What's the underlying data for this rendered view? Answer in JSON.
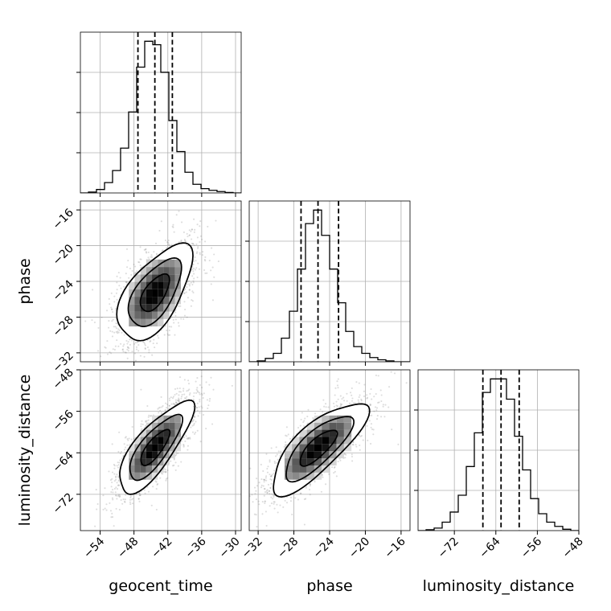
{
  "chart_data": {
    "type": "corner",
    "title": "",
    "parameters": [
      "geocent_time",
      "phase",
      "luminosity_distance"
    ],
    "axis_labels": {
      "geocent_time": "geocent_time",
      "phase": "phase",
      "luminosity_distance": "luminosity_distance"
    },
    "ranges": {
      "geocent_time": [
        -57.5,
        -29
      ],
      "phase": [
        -33,
        -15
      ],
      "luminosity_distance": [
        -79,
        -48
      ]
    },
    "ticks": {
      "geocent_time": {
        "values": [
          -54,
          -48,
          -42,
          -36,
          -30
        ],
        "labels": [
          "−54",
          "−48",
          "−42",
          "−36",
          "−30"
        ]
      },
      "phase": {
        "values": [
          -32,
          -28,
          -24,
          -20,
          -16
        ],
        "labels": [
          "−32",
          "−28",
          "−24",
          "−20",
          "−16"
        ]
      },
      "luminosity_distance": {
        "values": [
          -72,
          -64,
          -56,
          -48
        ],
        "labels": [
          "−72",
          "−64",
          "−56",
          "−48"
        ]
      }
    },
    "grid": true,
    "quantiles": {
      "geocent_time": [
        -47.3,
        -44.3,
        -41.2
      ],
      "phase": [
        -27.2,
        -25.3,
        -23.0
      ],
      "luminosity_distance": [
        -66.5,
        -63.0,
        -59.5
      ]
    },
    "marginals": {
      "geocent_time": {
        "edges": [
          -57.5,
          -56.07,
          -54.65,
          -53.22,
          -51.8,
          -50.38,
          -48.95,
          -47.53,
          -46.1,
          -44.67,
          -43.25,
          -41.82,
          -40.4,
          -38.97,
          -37.55,
          -36.12,
          -34.7,
          -33.28,
          -31.85,
          -30.43,
          -29.0
        ],
        "counts": [
          0.0,
          0.005,
          0.02,
          0.06,
          0.13,
          0.26,
          0.47,
          0.73,
          0.88,
          0.86,
          0.7,
          0.42,
          0.24,
          0.12,
          0.05,
          0.025,
          0.015,
          0.008,
          0.003,
          0.0
        ]
      },
      "phase": {
        "edges": [
          -33.0,
          -32.1,
          -31.2,
          -30.3,
          -29.4,
          -28.5,
          -27.6,
          -26.7,
          -25.8,
          -24.9,
          -24.0,
          -23.1,
          -22.2,
          -21.3,
          -20.4,
          -19.5,
          -18.6,
          -17.7,
          -16.8,
          -15.9,
          -15.0
        ],
        "counts": [
          0.0,
          0.005,
          0.02,
          0.05,
          0.14,
          0.3,
          0.55,
          0.82,
          0.9,
          0.75,
          0.55,
          0.35,
          0.18,
          0.09,
          0.05,
          0.025,
          0.012,
          0.005,
          0.0,
          0.0
        ]
      },
      "luminosity_distance": {
        "edges": [
          -79.0,
          -77.45,
          -75.9,
          -74.35,
          -72.8,
          -71.25,
          -69.7,
          -68.15,
          -66.6,
          -65.05,
          -63.5,
          -61.95,
          -60.4,
          -58.85,
          -57.3,
          -55.75,
          -54.2,
          -52.65,
          -51.1,
          -49.55,
          -48.0
        ],
        "counts": [
          0.0,
          0.005,
          0.015,
          0.05,
          0.11,
          0.21,
          0.38,
          0.58,
          0.82,
          0.9,
          0.9,
          0.78,
          0.56,
          0.36,
          0.19,
          0.1,
          0.05,
          0.025,
          0.008,
          0.0
        ]
      }
    },
    "joint": [
      {
        "x": "geocent_time",
        "y": "phase",
        "mean": [
          -44.3,
          -25.3
        ],
        "std": [
          3.2,
          2.6
        ],
        "corr": 0.6
      },
      {
        "x": "geocent_time",
        "y": "luminosity_distance",
        "mean": [
          -44.3,
          -63.0
        ],
        "std": [
          3.2,
          4.3
        ],
        "corr": 0.78
      },
      {
        "x": "phase",
        "y": "luminosity_distance",
        "mean": [
          -25.3,
          -63.0
        ],
        "std": [
          2.6,
          4.3
        ],
        "corr": 0.78
      }
    ]
  }
}
